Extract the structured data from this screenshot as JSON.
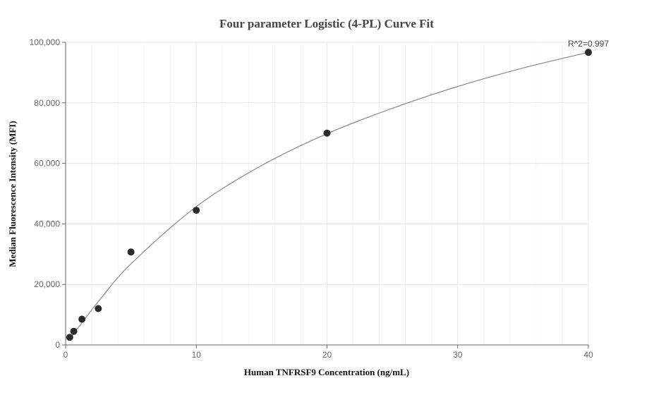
{
  "chart_data": {
    "type": "scatter",
    "title": "Four parameter Logistic (4-PL) Curve Fit",
    "xlabel": "Human TNFRSF9 Concentration (ng/mL)",
    "ylabel": "Median Fluorescence Intensity (MFI)",
    "xlim": [
      0,
      40
    ],
    "ylim": [
      0,
      100000
    ],
    "x_ticks": [
      0,
      10,
      20,
      30,
      40
    ],
    "y_ticks": [
      0,
      20000,
      40000,
      60000,
      80000,
      100000
    ],
    "x_tick_labels": [
      "0",
      "10",
      "20",
      "30",
      "40"
    ],
    "y_tick_labels": [
      "0",
      "20,000",
      "40,000",
      "60,000",
      "80,000",
      "100,000"
    ],
    "grid": true,
    "series": [
      {
        "type": "scatter",
        "x": [
          0.3125,
          0.625,
          1.25,
          2.5,
          5,
          10,
          20,
          40
        ],
        "y": [
          2500,
          4500,
          8500,
          12000,
          30700,
          44500,
          70000,
          96700
        ]
      },
      {
        "type": "line",
        "x": [
          0.3125,
          0.625,
          1.25,
          2.5,
          5,
          10,
          15,
          20,
          25,
          30,
          35,
          40
        ],
        "y": [
          2000,
          3800,
          7300,
          14300,
          26800,
          45700,
          59300,
          69800,
          78200,
          85400,
          91500,
          96700
        ]
      }
    ],
    "annotation": "R^2=0.997",
    "colors": {
      "marker": "#2b2b2b",
      "curve": "#888888",
      "grid": "#e6e6e6",
      "axis": "#666666"
    }
  }
}
